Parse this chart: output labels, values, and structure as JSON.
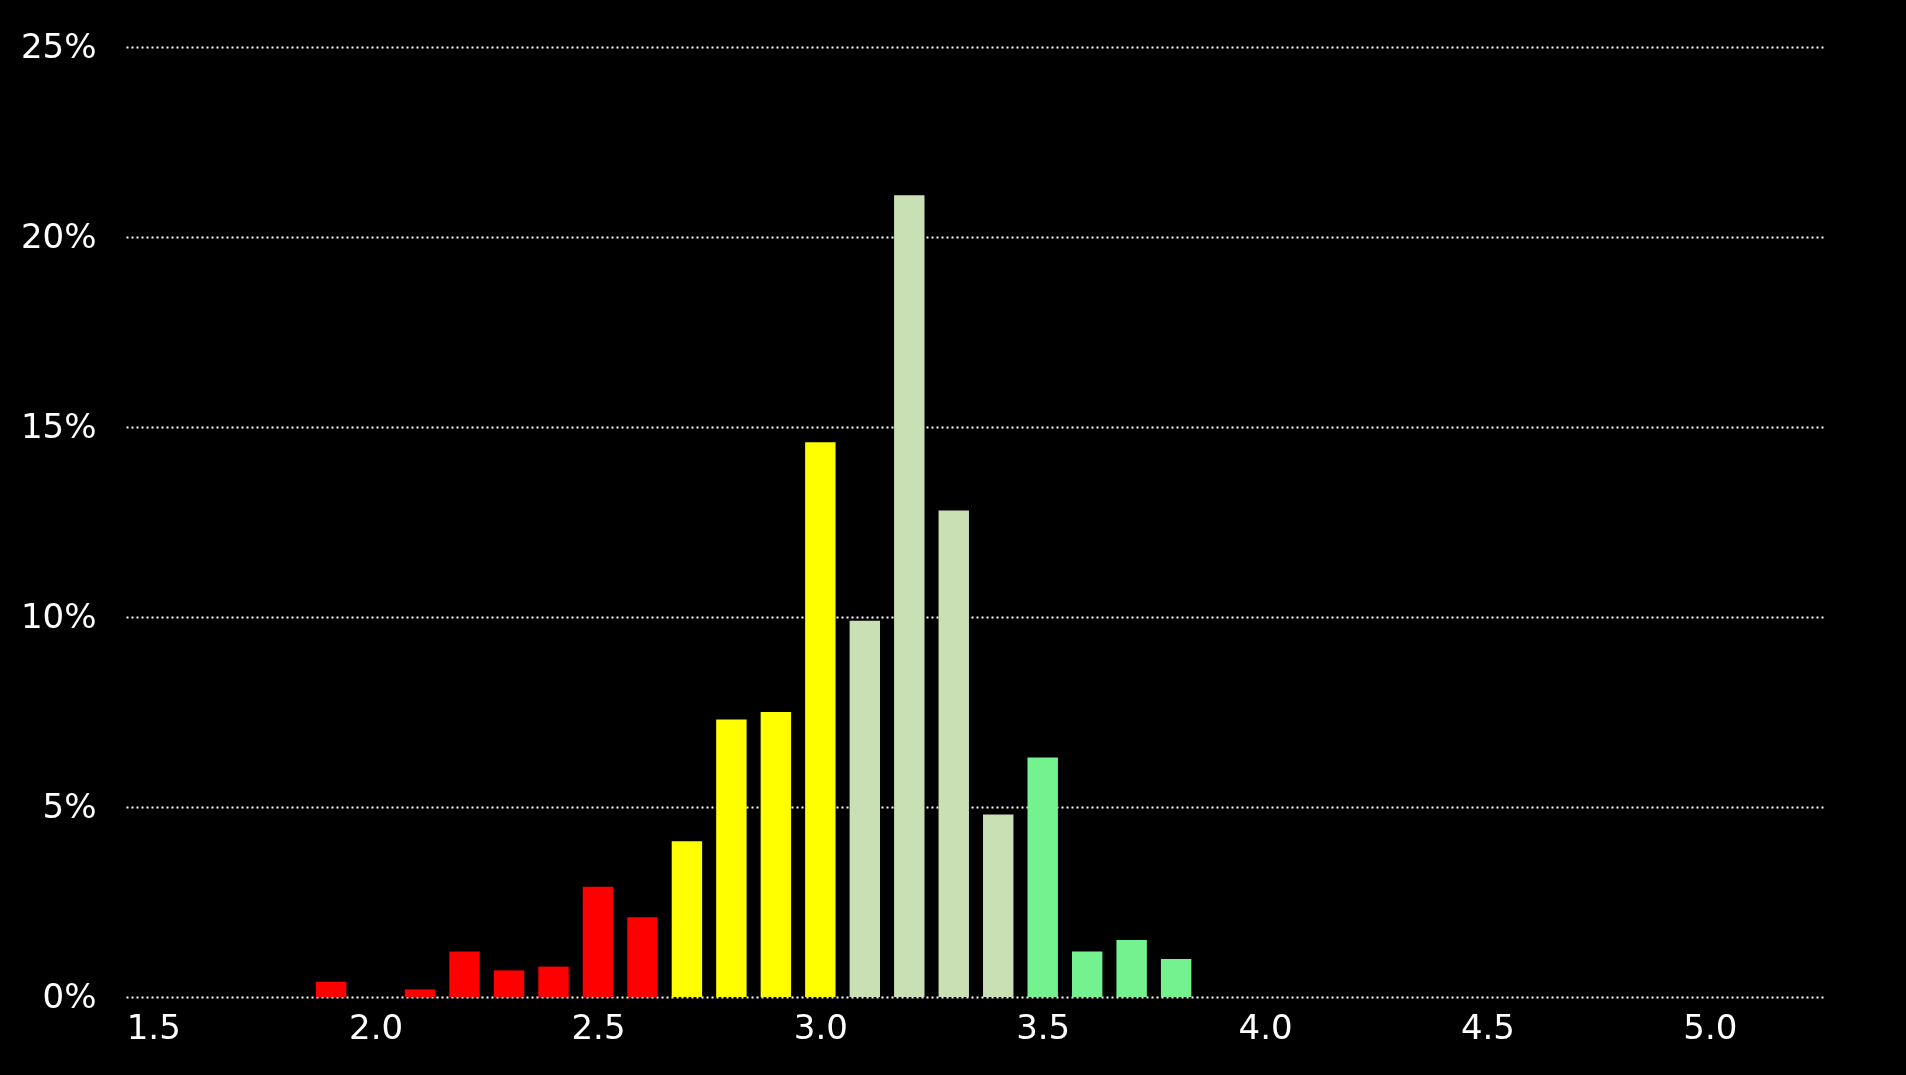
{
  "chart_data": {
    "type": "bar",
    "x": [
      1.9,
      2.0,
      2.1,
      2.2,
      2.3,
      2.4,
      2.5,
      2.6,
      2.7,
      2.8,
      2.9,
      3.0,
      3.1,
      3.2,
      3.3,
      3.4,
      3.5,
      3.6,
      3.7,
      3.8
    ],
    "values": [
      0.4,
      0,
      0.2,
      1.2,
      0.7,
      0.8,
      2.9,
      2.1,
      4.1,
      7.3,
      7.5,
      14.6,
      9.9,
      21.1,
      12.8,
      4.8,
      6.3,
      1.2,
      1.5,
      1.0
    ],
    "colors": [
      "#ff0000",
      "#ff0000",
      "#ff0000",
      "#ff0000",
      "#ff0000",
      "#ff0000",
      "#ff0000",
      "#ff0000",
      "#ffff00",
      "#ffff00",
      "#ffff00",
      "#ffff00",
      "#c8e0b4",
      "#c8e0b4",
      "#c8e0b4",
      "#c8e0b4",
      "#74f28f",
      "#74f28f",
      "#74f28f",
      "#74f28f"
    ],
    "xlim": [
      1.45,
      5.25
    ],
    "xticks": [
      {
        "value": 1.5,
        "label": "1.5"
      },
      {
        "value": 2,
        "label": "2.0"
      },
      {
        "value": 2.5,
        "label": "2.5"
      },
      {
        "value": 3,
        "label": "3.0"
      },
      {
        "value": 3.5,
        "label": "3.5"
      },
      {
        "value": 4,
        "label": "4.0"
      },
      {
        "value": 4.5,
        "label": "4.5"
      },
      {
        "value": 5,
        "label": "5.0"
      }
    ],
    "ylim": [
      0,
      25
    ],
    "yticks": [
      {
        "value": 0,
        "label": "0%"
      },
      {
        "value": 5,
        "label": "5%"
      },
      {
        "value": 10,
        "label": "10%"
      },
      {
        "value": 15,
        "label": "15%"
      },
      {
        "value": 20,
        "label": "20%"
      },
      {
        "value": 25,
        "label": "25%"
      }
    ],
    "grid": "y"
  }
}
